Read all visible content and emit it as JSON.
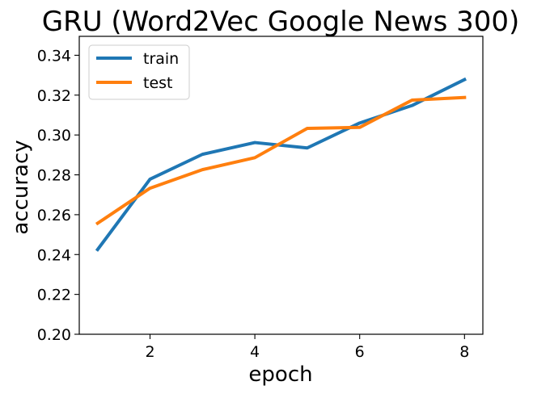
{
  "chart_data": {
    "type": "line",
    "title": "GRU (Word2Vec Google News 300)",
    "xlabel": "epoch",
    "ylabel": "accuracy",
    "x": [
      1,
      2,
      3,
      4,
      5,
      6,
      7,
      8
    ],
    "xticks": [
      2,
      4,
      6,
      8
    ],
    "yticks": [
      0.2,
      0.22,
      0.24,
      0.26,
      0.28,
      0.3,
      0.32,
      0.34
    ],
    "xlim": [
      0.65,
      8.35
    ],
    "ylim": [
      0.2,
      0.3495
    ],
    "grid": false,
    "legend_position": "top-left",
    "series": [
      {
        "name": "train",
        "color": "#1f77b4",
        "values": [
          0.2425,
          0.2778,
          0.2903,
          0.2962,
          0.2935,
          0.306,
          0.3148,
          0.3278
        ]
      },
      {
        "name": "test",
        "color": "#ff7f0e",
        "values": [
          0.2557,
          0.2733,
          0.2826,
          0.2886,
          0.3033,
          0.3038,
          0.3175,
          0.3188
        ]
      }
    ]
  }
}
